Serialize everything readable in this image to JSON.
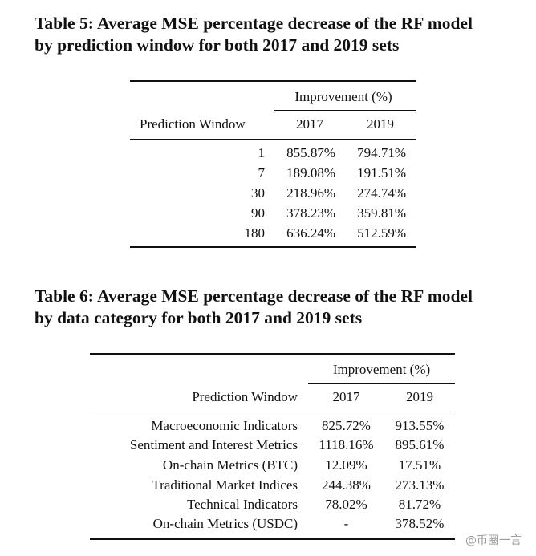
{
  "table5": {
    "caption_line1": "Table 5: Average MSE percentage decrease of the RF model",
    "caption_line2": "by prediction window for both 2017 and 2019 sets",
    "group_header": "Improvement (%)",
    "row_header": "Prediction Window",
    "col_2017": "2017",
    "col_2019": "2019",
    "rows": [
      {
        "label": "1",
        "v2017": "855.87%",
        "v2019": "794.71%"
      },
      {
        "label": "7",
        "v2017": "189.08%",
        "v2019": "191.51%"
      },
      {
        "label": "30",
        "v2017": "218.96%",
        "v2019": "274.74%"
      },
      {
        "label": "90",
        "v2017": "378.23%",
        "v2019": "359.81%"
      },
      {
        "label": "180",
        "v2017": "636.24%",
        "v2019": "512.59%"
      }
    ]
  },
  "table6": {
    "caption_line1": "Table 6: Average MSE percentage decrease of the RF model",
    "caption_line2": "by data category for both 2017 and 2019 sets",
    "group_header": "Improvement (%)",
    "row_header": "Prediction Window",
    "col_2017": "2017",
    "col_2019": "2019",
    "rows": [
      {
        "label": "Macroeconomic Indicators",
        "v2017": "825.72%",
        "v2019": "913.55%"
      },
      {
        "label": "Sentiment and Interest Metrics",
        "v2017": "1118.16%",
        "v2019": "895.61%"
      },
      {
        "label": "On-chain Metrics (BTC)",
        "v2017": "12.09%",
        "v2019": "17.51%"
      },
      {
        "label": "Traditional Market Indices",
        "v2017": "244.38%",
        "v2019": "273.13%"
      },
      {
        "label": "Technical Indicators",
        "v2017": "78.02%",
        "v2019": "81.72%"
      },
      {
        "label": "On-chain Metrics (USDC)",
        "v2017": "-",
        "v2019": "378.52%"
      }
    ]
  },
  "watermark": "@币圈一言"
}
